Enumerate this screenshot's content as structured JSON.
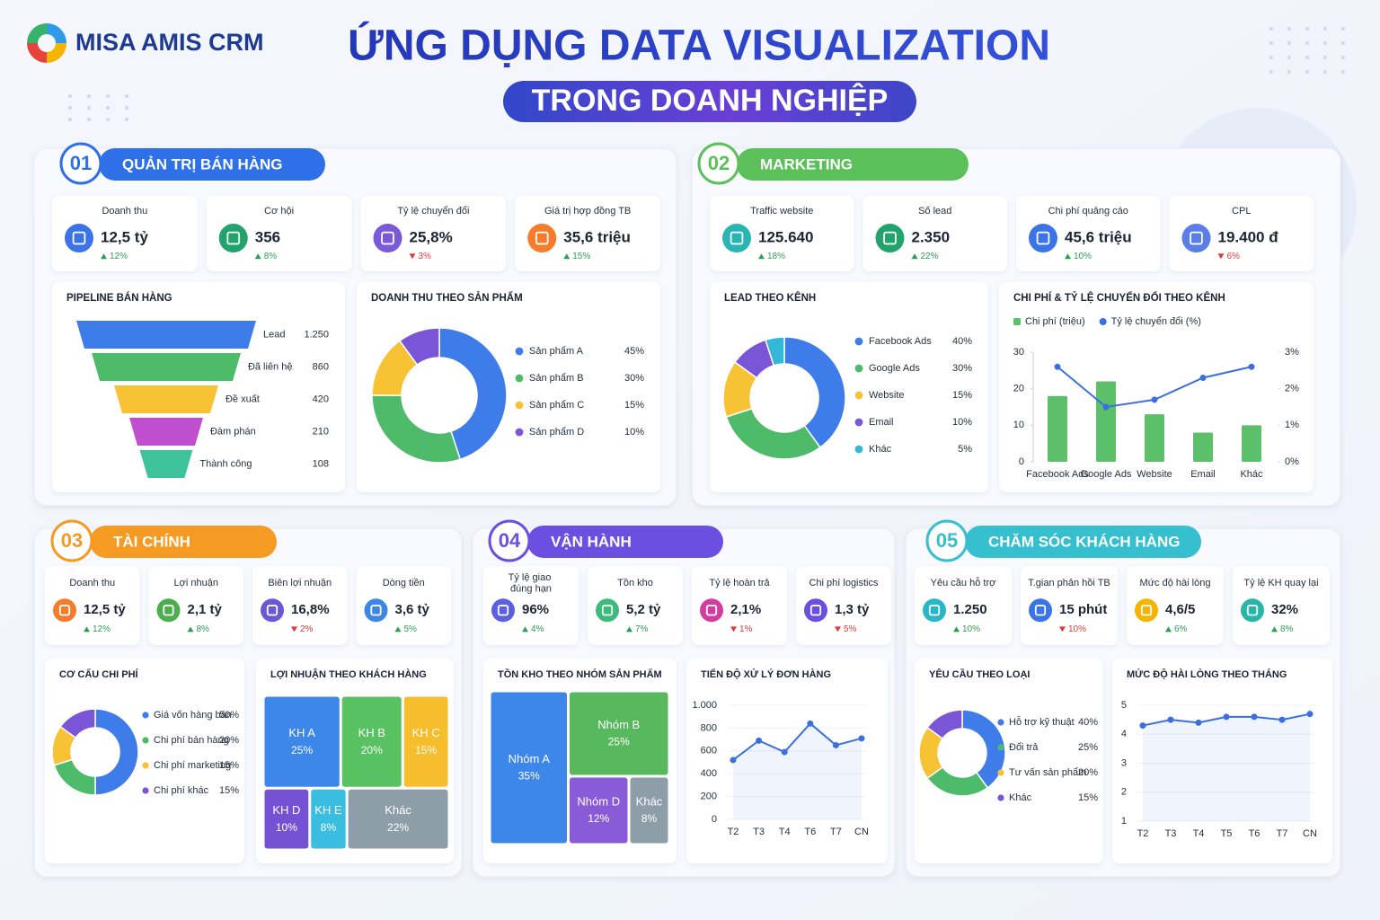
{
  "header": {
    "brand": "MISA AMIS CRM",
    "title": "ỨNG DỤNG DATA VISUALIZATION",
    "subtitle": "TRONG DOANH NGHIỆP"
  },
  "sections": [
    {
      "number": "01",
      "title": "QUẢN TRỊ BÁN HÀNG",
      "color": "#2f6fe8",
      "kpis": [
        {
          "label": "Doanh thu",
          "value": "12,5 tỷ",
          "change": "12%",
          "trend": "up",
          "color": "#3b74e6"
        },
        {
          "label": "Cơ hội",
          "value": "356",
          "change": "8%",
          "trend": "up",
          "color": "#21a36b"
        },
        {
          "label": "Tỷ lệ chuyển đổi",
          "value": "25,8%",
          "change": "3%",
          "trend": "down",
          "color": "#7a5ad6"
        },
        {
          "label": "Giá trị hợp đồng TB",
          "value": "35,6 triệu",
          "change": "15%",
          "trend": "up",
          "color": "#f57c2a"
        }
      ],
      "charts": [
        {
          "type": "funnel",
          "title": "PIPELINE BÁN HÀNG",
          "categories": [
            "Lead",
            "Đã liên hệ",
            "Đề xuất",
            "Đàm phán",
            "Thành công"
          ],
          "values": [
            1250,
            860,
            420,
            210,
            108
          ],
          "value_labels": [
            "1.250",
            "860",
            "420",
            "210",
            "108"
          ],
          "colors": [
            "#3d7ce9",
            "#4dbb6a",
            "#f7c233",
            "#c04fcf",
            "#3cc39c"
          ]
        },
        {
          "type": "donut",
          "title": "DOANH THU THEO SẢN PHẨM",
          "categories": [
            "Sản phẩm A",
            "Sản phẩm B",
            "Sản phẩm C",
            "Sản phẩm D"
          ],
          "values": [
            45,
            30,
            15,
            10
          ],
          "value_labels": [
            "45%",
            "30%",
            "15%",
            "10%"
          ],
          "colors": [
            "#3d7ce9",
            "#4dbb6a",
            "#f7c233",
            "#7a55d6"
          ]
        }
      ]
    },
    {
      "number": "02",
      "title": "MARKETING",
      "color": "#5cc05a",
      "kpis": [
        {
          "label": "Traffic website",
          "value": "125.640",
          "change": "18%",
          "trend": "up",
          "color": "#2ab5b5"
        },
        {
          "label": "Số lead",
          "value": "2.350",
          "change": "22%",
          "trend": "up",
          "color": "#21a36b"
        },
        {
          "label": "Chi phí quảng cáo",
          "value": "45,6 triệu",
          "change": "10%",
          "trend": "up",
          "color": "#3b74e6"
        },
        {
          "label": "CPL",
          "value": "19.400 đ",
          "change": "6%",
          "trend": "down",
          "color": "#5b7de6"
        }
      ],
      "charts": [
        {
          "type": "donut",
          "title": "LEAD THEO KÊNH",
          "categories": [
            "Facebook Ads",
            "Google Ads",
            "Website",
            "Email",
            "Khác"
          ],
          "values": [
            40,
            30,
            15,
            10,
            5
          ],
          "value_labels": [
            "40%",
            "30%",
            "15%",
            "10%",
            "5%"
          ],
          "colors": [
            "#3d7ce9",
            "#4dbb6a",
            "#f7c233",
            "#7a55d6",
            "#35b8d8"
          ]
        },
        {
          "type": "bar_line",
          "title": "CHI PHÍ & TỶ LỆ CHUYỂN ĐỔI THEO KÊNH",
          "categories": [
            "Facebook Ads",
            "Google Ads",
            "Website",
            "Email",
            "Khác"
          ],
          "series": [
            {
              "name": "Chi phí (triệu)",
              "color": "#5cbf6a",
              "values": [
                18,
                22,
                13,
                8,
                10
              ]
            },
            {
              "name": "Tỷ lệ chuyển đổi (%)",
              "color": "#3b6fe0",
              "axis": "y2",
              "values": [
                2.6,
                1.5,
                1.7,
                2.3,
                2.6
              ]
            }
          ],
          "ylim": [
            0,
            30
          ],
          "yticks": [
            0,
            10,
            20,
            30
          ],
          "y2lim": [
            0,
            3
          ],
          "y2ticks": [
            {
              "value": 0,
              "label": "0%"
            },
            {
              "value": 1,
              "label": "1%"
            },
            {
              "value": 2,
              "label": "2%"
            },
            {
              "value": 3,
              "label": "3%"
            }
          ]
        }
      ]
    },
    {
      "number": "03",
      "title": "TÀI CHÍNH",
      "color": "#f59a23",
      "kpis": [
        {
          "label": "Doanh thu",
          "value": "12,5 tỷ",
          "change": "12%",
          "trend": "up",
          "color": "#f57c2a"
        },
        {
          "label": "Lợi nhuận",
          "value": "2,1 tỷ",
          "change": "8%",
          "trend": "up",
          "color": "#4cae4f"
        },
        {
          "label": "Biên lợi nhuận",
          "value": "16,8%",
          "change": "2%",
          "trend": "down",
          "color": "#6b58d8"
        },
        {
          "label": "Dòng tiền",
          "value": "3,6 tỷ",
          "change": "5%",
          "trend": "up",
          "color": "#3b86e6"
        }
      ],
      "charts": [
        {
          "type": "donut",
          "title": "CƠ CẤU CHI PHÍ",
          "categories": [
            "Giá vốn hàng bán",
            "Chi phí bán hàng",
            "Chi phí marketing",
            "Chi phí khác"
          ],
          "values": [
            50,
            20,
            15,
            15
          ],
          "value_labels": [
            "50%",
            "20%",
            "15%",
            "15%"
          ],
          "colors": [
            "#3d7ce9",
            "#4dbb6a",
            "#f7c233",
            "#7a55d6"
          ]
        },
        {
          "type": "treemap",
          "title": "LỢI NHUẬN THEO KHÁCH HÀNG",
          "categories": [
            "KH A",
            "KH B",
            "KH C",
            "KH D",
            "KH E",
            "Khác"
          ],
          "values": [
            25,
            20,
            15,
            10,
            8,
            22
          ],
          "value_labels": [
            "25%",
            "20%",
            "15%",
            "10%",
            "8%",
            "22%"
          ],
          "colors": [
            "#3d86ea",
            "#58c161",
            "#f6bd2c",
            "#7552d4",
            "#39bde0",
            "#8e9ea8"
          ]
        }
      ]
    },
    {
      "number": "04",
      "title": "VẬN HÀNH",
      "color": "#6a4fe0",
      "kpis": [
        {
          "label": "Tỷ lệ giao đúng hạn",
          "value": "96%",
          "change": "4%",
          "trend": "up",
          "color": "#5b5fe0"
        },
        {
          "label": "Tồn kho",
          "value": "5,2 tỷ",
          "change": "7%",
          "trend": "up",
          "color": "#3dbb7a"
        },
        {
          "label": "Tỷ lệ hoàn trả",
          "value": "2,1%",
          "change": "1%",
          "trend": "down",
          "color": "#d33da0"
        },
        {
          "label": "Chi phí logistics",
          "value": "1,3 tỷ",
          "change": "5%",
          "trend": "down",
          "color": "#6a4fe0"
        }
      ],
      "charts": [
        {
          "type": "treemap",
          "title": "TỒN KHO THEO NHÓM SẢN PHẨM",
          "categories": [
            "Nhóm A",
            "Nhóm B",
            "Nhóm D",
            "Khác"
          ],
          "values": [
            35,
            25,
            12,
            8
          ],
          "value_labels": [
            "35%",
            "25%",
            "12%",
            "8%"
          ],
          "colors": [
            "#3d86ea",
            "#58b85d",
            "#8a5bd8",
            "#8e9ea8"
          ]
        },
        {
          "type": "line",
          "title": "TIẾN ĐỘ XỬ LÝ ĐƠN HÀNG",
          "categories": [
            "T2",
            "T3",
            "T4",
            "T6",
            "T7",
            "CN"
          ],
          "values": [
            520,
            690,
            590,
            840,
            650,
            710
          ],
          "color": "#3b6fe0",
          "ylim": [
            0,
            1000
          ],
          "yticks": [
            0,
            200,
            400,
            600,
            800,
            {
              "value": 1000,
              "label": "1.000"
            }
          ]
        }
      ]
    },
    {
      "number": "05",
      "title": "CHĂM SÓC KHÁCH HÀNG",
      "color": "#35bfcf",
      "kpis": [
        {
          "label": "Yêu cầu hỗ trợ",
          "value": "1.250",
          "change": "10%",
          "trend": "up",
          "color": "#26b8c8"
        },
        {
          "label": "T.gian phản hồi TB",
          "value": "15 phút",
          "change": "10%",
          "trend": "down",
          "color": "#3b74e6"
        },
        {
          "label": "Mức độ hài lòng",
          "value": "4,6/5",
          "change": "6%",
          "trend": "up",
          "color": "#f5b400"
        },
        {
          "label": "Tỷ lệ KH quay lại",
          "value": "32%",
          "change": "8%",
          "trend": "up",
          "color": "#27b6a8"
        }
      ],
      "charts": [
        {
          "type": "donut",
          "title": "YÊU CẦU THEO LOẠI",
          "categories": [
            "Hỗ trợ kỹ thuật",
            "Đổi trả",
            "Tư vấn sản phẩm",
            "Khác"
          ],
          "values": [
            40,
            25,
            20,
            15
          ],
          "value_labels": [
            "40%",
            "25%",
            "20%",
            "15%"
          ],
          "colors": [
            "#3d7ce9",
            "#4dbb6a",
            "#f7c233",
            "#7a55d6"
          ]
        },
        {
          "type": "line",
          "title": "MỨC ĐỘ HÀI LÒNG THEO THÁNG",
          "categories": [
            "T2",
            "T3",
            "T4",
            "T5",
            "T6",
            "T7",
            "CN"
          ],
          "values": [
            4.3,
            4.5,
            4.4,
            4.6,
            4.6,
            4.5,
            4.7
          ],
          "color": "#3b6fe0",
          "ylim": [
            1,
            5
          ],
          "yticks": [
            1,
            2,
            3,
            4,
            5
          ]
        }
      ]
    }
  ]
}
